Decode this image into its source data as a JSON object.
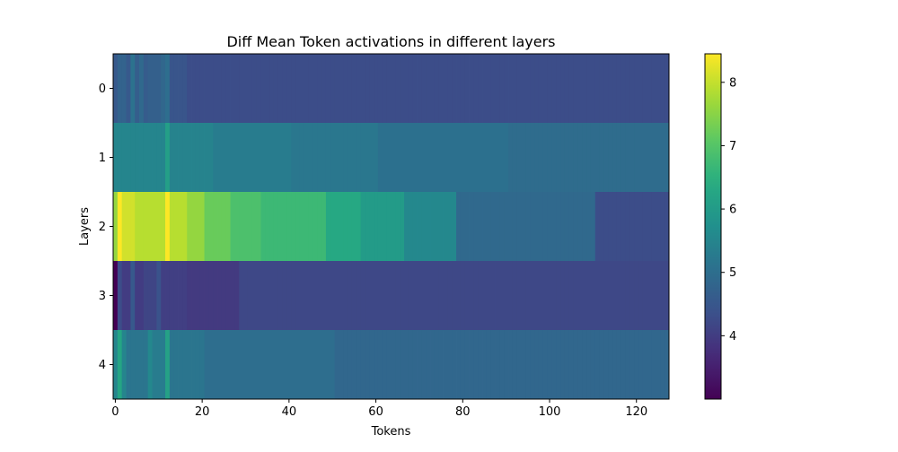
{
  "chart_data": {
    "type": "heatmap",
    "title": "Diff Mean Token activations in different layers",
    "xlabel": "Tokens",
    "ylabel": "Layers",
    "x_range": [
      -0.5,
      127.5
    ],
    "y_rows": [
      0,
      1,
      2,
      3,
      4
    ],
    "x_ticks": [
      0,
      20,
      40,
      60,
      80,
      100,
      120
    ],
    "y_ticks": [
      0,
      1,
      2,
      3,
      4
    ],
    "colormap": "viridis",
    "colorbar": {
      "range": [
        3.0,
        8.45
      ],
      "ticks": [
        4,
        5,
        6,
        7,
        8
      ]
    },
    "grid": false,
    "rows": [
      {
        "layer": 0,
        "default": 4.3,
        "segments": [
          {
            "x0": 0,
            "x1": 0,
            "v": 4.55
          },
          {
            "x0": 1,
            "x1": 2,
            "v": 4.75
          },
          {
            "x0": 3,
            "x1": 3,
            "v": 4.55
          },
          {
            "x0": 4,
            "x1": 4,
            "v": 5.1
          },
          {
            "x0": 5,
            "x1": 5,
            "v": 4.65
          },
          {
            "x0": 6,
            "x1": 6,
            "v": 4.9
          },
          {
            "x0": 7,
            "x1": 7,
            "v": 4.6
          },
          {
            "x0": 8,
            "x1": 10,
            "v": 4.7
          },
          {
            "x0": 11,
            "x1": 11,
            "v": 4.85
          },
          {
            "x0": 12,
            "x1": 12,
            "v": 5.0
          },
          {
            "x0": 13,
            "x1": 16,
            "v": 4.45
          },
          {
            "x0": 17,
            "x1": 127,
            "v": 4.3
          }
        ]
      },
      {
        "layer": 1,
        "default": 5.0,
        "segments": [
          {
            "x0": 0,
            "x1": 11,
            "v": 5.5
          },
          {
            "x0": 12,
            "x1": 12,
            "v": 6.1
          },
          {
            "x0": 13,
            "x1": 22,
            "v": 5.45
          },
          {
            "x0": 23,
            "x1": 40,
            "v": 5.3
          },
          {
            "x0": 41,
            "x1": 60,
            "v": 5.2
          },
          {
            "x0": 61,
            "x1": 90,
            "v": 5.05
          },
          {
            "x0": 91,
            "x1": 127,
            "v": 4.95
          }
        ]
      },
      {
        "layer": 2,
        "default": 4.3,
        "segments": [
          {
            "x0": 0,
            "x1": 0,
            "v": 7.6
          },
          {
            "x0": 1,
            "x1": 1,
            "v": 8.45
          },
          {
            "x0": 2,
            "x1": 4,
            "v": 8.1
          },
          {
            "x0": 5,
            "x1": 11,
            "v": 7.9
          },
          {
            "x0": 12,
            "x1": 12,
            "v": 8.45
          },
          {
            "x0": 13,
            "x1": 16,
            "v": 7.9
          },
          {
            "x0": 17,
            "x1": 20,
            "v": 7.6
          },
          {
            "x0": 21,
            "x1": 26,
            "v": 7.2
          },
          {
            "x0": 27,
            "x1": 33,
            "v": 6.9
          },
          {
            "x0": 34,
            "x1": 48,
            "v": 6.7
          },
          {
            "x0": 49,
            "x1": 56,
            "v": 6.3
          },
          {
            "x0": 57,
            "x1": 66,
            "v": 6.0
          },
          {
            "x0": 67,
            "x1": 78,
            "v": 5.55
          },
          {
            "x0": 79,
            "x1": 110,
            "v": 4.9
          },
          {
            "x0": 111,
            "x1": 127,
            "v": 4.3
          }
        ]
      },
      {
        "layer": 3,
        "default": 4.2,
        "segments": [
          {
            "x0": 0,
            "x1": 0,
            "v": 3.0
          },
          {
            "x0": 1,
            "x1": 1,
            "v": 4.3
          },
          {
            "x0": 2,
            "x1": 3,
            "v": 4.0
          },
          {
            "x0": 4,
            "x1": 4,
            "v": 4.55
          },
          {
            "x0": 5,
            "x1": 6,
            "v": 4.0
          },
          {
            "x0": 7,
            "x1": 9,
            "v": 4.15
          },
          {
            "x0": 10,
            "x1": 10,
            "v": 4.4
          },
          {
            "x0": 11,
            "x1": 16,
            "v": 4.05
          },
          {
            "x0": 17,
            "x1": 28,
            "v": 3.95
          },
          {
            "x0": 29,
            "x1": 127,
            "v": 4.2
          }
        ]
      },
      {
        "layer": 4,
        "default": 5.0,
        "segments": [
          {
            "x0": 0,
            "x1": 0,
            "v": 5.5
          },
          {
            "x0": 1,
            "x1": 1,
            "v": 6.25
          },
          {
            "x0": 2,
            "x1": 2,
            "v": 5.5
          },
          {
            "x0": 3,
            "x1": 7,
            "v": 5.15
          },
          {
            "x0": 8,
            "x1": 8,
            "v": 5.55
          },
          {
            "x0": 9,
            "x1": 11,
            "v": 5.3
          },
          {
            "x0": 12,
            "x1": 12,
            "v": 6.15
          },
          {
            "x0": 13,
            "x1": 20,
            "v": 5.15
          },
          {
            "x0": 21,
            "x1": 50,
            "v": 5.0
          },
          {
            "x0": 51,
            "x1": 127,
            "v": 4.85
          }
        ]
      }
    ]
  }
}
